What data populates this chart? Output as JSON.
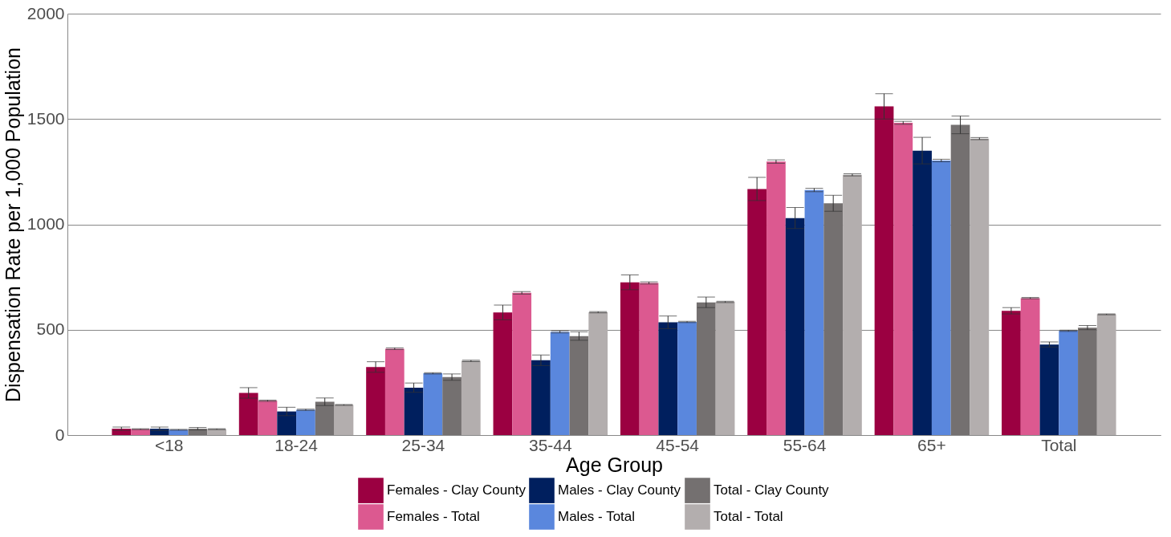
{
  "chart_data": {
    "type": "bar",
    "xlabel": "Age Group",
    "ylabel": "Dispensation Rate per 1,000 Population",
    "categories": [
      "<18",
      "18-24",
      "25-34",
      "35-44",
      "45-54",
      "55-64",
      "65+",
      "Total"
    ],
    "series": [
      {
        "name": "Females - Clay County",
        "color": "#9b0041",
        "values": [
          30,
          200,
          323,
          582,
          725,
          1168,
          1560,
          590
        ],
        "errors": [
          8,
          25,
          25,
          35,
          35,
          55,
          60,
          15
        ]
      },
      {
        "name": "Females - Total",
        "color": "#dc5990",
        "values": [
          28,
          163,
          410,
          675,
          722,
          1298,
          1482,
          650
        ],
        "errors": [
          2,
          3,
          4,
          6,
          5,
          8,
          7,
          3
        ]
      },
      {
        "name": "Males - Clay County",
        "color": "#001f5e",
        "values": [
          30,
          112,
          225,
          355,
          535,
          1030,
          1350,
          430
        ],
        "errors": [
          8,
          20,
          22,
          25,
          30,
          50,
          63,
          12
        ]
      },
      {
        "name": "Males - Total",
        "color": "#5a87dd",
        "values": [
          25,
          120,
          293,
          490,
          537,
          1163,
          1303,
          495
        ],
        "errors": [
          2,
          3,
          3,
          5,
          3,
          8,
          6,
          3
        ]
      },
      {
        "name": "Total - Clay County",
        "color": "#747070",
        "values": [
          30,
          158,
          275,
          470,
          630,
          1100,
          1472,
          510
        ],
        "errors": [
          6,
          18,
          15,
          20,
          25,
          38,
          42,
          10
        ]
      },
      {
        "name": "Total - Total",
        "color": "#b3aeae",
        "values": [
          28,
          143,
          352,
          583,
          632,
          1235,
          1407,
          573
        ],
        "errors": [
          2,
          2,
          3,
          3,
          3,
          5,
          5,
          2
        ]
      }
    ],
    "ylim": [
      0,
      2000
    ],
    "yticks": [
      0,
      500,
      1000,
      1500,
      2000
    ],
    "grid": "y",
    "legend": "bottom"
  }
}
